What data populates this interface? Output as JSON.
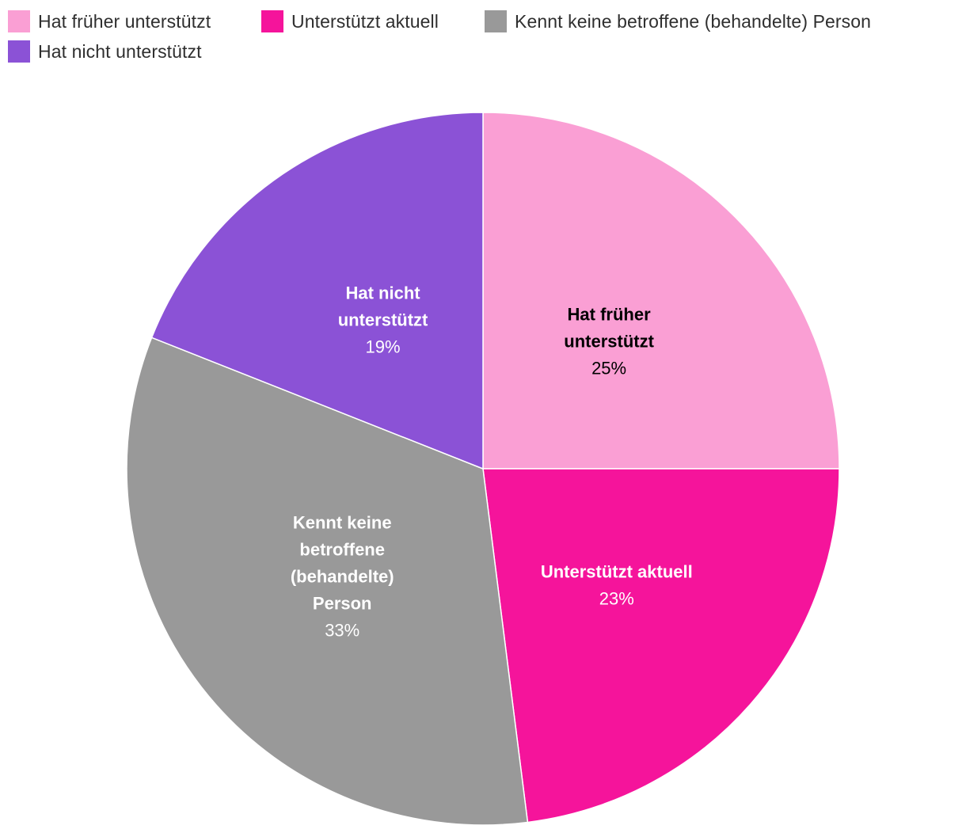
{
  "chart_data": {
    "type": "pie",
    "series": [
      {
        "values": [
          25,
          23,
          33,
          19
        ]
      }
    ],
    "categories": [
      "Hat früher unterstützt",
      "Unterstützt aktuell",
      "Kennt keine betroffene (behandelte) Person",
      "Hat nicht unterstützt"
    ],
    "values": [
      25,
      23,
      33,
      19
    ],
    "value_labels": [
      "25%",
      "23%",
      "33%",
      "19%"
    ],
    "slice_label_lines": [
      [
        "Hat früher",
        "unterstützt"
      ],
      [
        "Unterstützt aktuell"
      ],
      [
        "Kennt keine",
        "betroffene",
        "(behandelte)",
        "Person"
      ],
      [
        "Hat nicht",
        "unterstützt"
      ]
    ],
    "colors": [
      "#fa9fd4",
      "#f5149b",
      "#999999",
      "#8b52d6"
    ],
    "label_colors": [
      "#000000",
      "#ffffff",
      "#ffffff",
      "#ffffff"
    ],
    "legend": {
      "placement": "top-left",
      "items": [
        "Hat früher unterstützt",
        "Unterstützt aktuell",
        "Kennt keine betroffene (behandelte) Person",
        "Hat nicht unterstützt"
      ]
    },
    "start": "12 o'clock",
    "direction": "clockwise"
  }
}
